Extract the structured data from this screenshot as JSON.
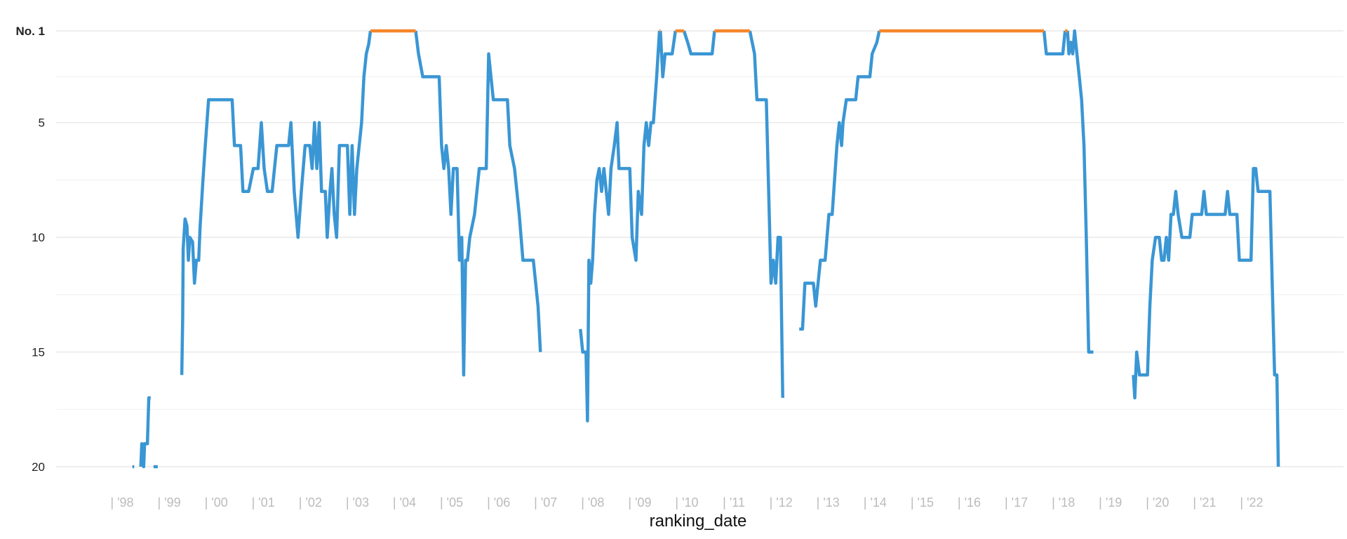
{
  "chart_data": {
    "type": "line",
    "xlabel": "ranking_date",
    "ylabel": "",
    "x_range": [
      1997.0,
      2023.7
    ],
    "y_range": [
      1,
      20
    ],
    "y_reversed": true,
    "y_ticks": [
      {
        "value": 1,
        "label": "No. 1",
        "bold": true
      },
      {
        "value": 5,
        "label": "5",
        "bold": false
      },
      {
        "value": 10,
        "label": "10",
        "bold": false
      },
      {
        "value": 15,
        "label": "15",
        "bold": false
      },
      {
        "value": 20,
        "label": "20",
        "bold": false
      }
    ],
    "y_minor_gridlines": [
      3,
      7.5,
      12.5,
      17.5
    ],
    "x_ticks": [
      {
        "value": 1998,
        "label": "| '98"
      },
      {
        "value": 1999,
        "label": "| '99"
      },
      {
        "value": 2000,
        "label": "| '00"
      },
      {
        "value": 2001,
        "label": "| '01"
      },
      {
        "value": 2002,
        "label": "| '02"
      },
      {
        "value": 2003,
        "label": "| '03"
      },
      {
        "value": 2004,
        "label": "| '04"
      },
      {
        "value": 2005,
        "label": "| '05"
      },
      {
        "value": 2006,
        "label": "| '06"
      },
      {
        "value": 2007,
        "label": "| '07"
      },
      {
        "value": 2008,
        "label": "| '08"
      },
      {
        "value": 2009,
        "label": "| '09"
      },
      {
        "value": 2010,
        "label": "| '10"
      },
      {
        "value": 2011,
        "label": "| '11"
      },
      {
        "value": 2012,
        "label": "| '12"
      },
      {
        "value": 2013,
        "label": "| '13"
      },
      {
        "value": 2014,
        "label": "| '14"
      },
      {
        "value": 2015,
        "label": "| '15"
      },
      {
        "value": 2016,
        "label": "| '16"
      },
      {
        "value": 2017,
        "label": "| '17"
      },
      {
        "value": 2018,
        "label": "| '18"
      },
      {
        "value": 2019,
        "label": "| '19"
      },
      {
        "value": 2020,
        "label": "| '20"
      },
      {
        "value": 2021,
        "label": "| '21"
      },
      {
        "value": 2022,
        "label": "| '22"
      }
    ],
    "grid": true,
    "colors": {
      "ranking_line": "#3a96d4",
      "number_one": "#f5862a",
      "grid": "#e4e4e4"
    },
    "series": [
      {
        "role": "ranking",
        "color": "#3a96d4",
        "segments": [
          [
            [
              1997.98,
              20
            ],
            [
              1998.02,
              20
            ]
          ],
          [
            [
              1998.16,
              20
            ],
            [
              1998.18,
              19
            ],
            [
              1998.22,
              20
            ],
            [
              1998.24,
              19
            ],
            [
              1998.3,
              19
            ],
            [
              1998.33,
              17
            ],
            [
              1998.37,
              17
            ]
          ],
          [
            [
              1998.43,
              20
            ],
            [
              1998.52,
              20
            ]
          ],
          [
            [
              1999.03,
              16
            ],
            [
              1999.05,
              13.5
            ],
            [
              1999.06,
              10.5
            ],
            [
              1999.1,
              9.2
            ],
            [
              1999.14,
              9.5
            ],
            [
              1999.17,
              11
            ],
            [
              1999.2,
              10
            ],
            [
              1999.26,
              10.2
            ],
            [
              1999.3,
              12
            ],
            [
              1999.34,
              11
            ],
            [
              1999.39,
              11
            ],
            [
              1999.42,
              9.5
            ],
            [
              1999.48,
              7.5
            ],
            [
              1999.53,
              6
            ],
            [
              1999.6,
              4
            ],
            [
              2000.1,
              4
            ],
            [
              2000.15,
              6
            ],
            [
              2000.28,
              6
            ],
            [
              2000.33,
              8
            ],
            [
              2000.45,
              8
            ],
            [
              2000.55,
              7
            ],
            [
              2000.65,
              7
            ],
            [
              2000.72,
              5
            ],
            [
              2000.78,
              7
            ],
            [
              2000.85,
              8
            ],
            [
              2000.95,
              8
            ],
            [
              2001.05,
              6
            ],
            [
              2001.3,
              6
            ],
            [
              2001.35,
              5
            ],
            [
              2001.42,
              8
            ],
            [
              2001.5,
              10
            ],
            [
              2001.57,
              8
            ],
            [
              2001.65,
              6
            ],
            [
              2001.75,
              6
            ],
            [
              2001.8,
              7
            ],
            [
              2001.85,
              5
            ],
            [
              2001.9,
              7
            ],
            [
              2001.95,
              5
            ],
            [
              2002.0,
              8
            ],
            [
              2002.08,
              8
            ],
            [
              2002.12,
              10
            ],
            [
              2002.18,
              8
            ],
            [
              2002.22,
              7
            ],
            [
              2002.27,
              9
            ],
            [
              2002.32,
              10
            ],
            [
              2002.38,
              6
            ],
            [
              2002.55,
              6
            ],
            [
              2002.6,
              9
            ],
            [
              2002.65,
              6
            ],
            [
              2002.7,
              9
            ],
            [
              2002.75,
              7
            ],
            [
              2002.85,
              5
            ],
            [
              2002.9,
              3
            ],
            [
              2002.95,
              2
            ],
            [
              2003.0,
              1.6
            ],
            [
              2003.04,
              1
            ]
          ],
          [
            [
              2004.0,
              1
            ],
            [
              2004.06,
              2
            ],
            [
              2004.15,
              3
            ],
            [
              2004.5,
              3
            ],
            [
              2004.55,
              6
            ],
            [
              2004.6,
              7
            ],
            [
              2004.65,
              6
            ],
            [
              2004.7,
              7
            ],
            [
              2004.75,
              9
            ],
            [
              2004.8,
              7
            ],
            [
              2004.88,
              7
            ],
            [
              2004.93,
              11
            ],
            [
              2004.98,
              10
            ],
            [
              2005.02,
              16
            ],
            [
              2005.06,
              11
            ],
            [
              2005.1,
              11
            ],
            [
              2005.15,
              10
            ],
            [
              2005.25,
              9
            ],
            [
              2005.35,
              7
            ],
            [
              2005.5,
              7
            ],
            [
              2005.55,
              2
            ],
            [
              2005.6,
              3
            ],
            [
              2005.65,
              4
            ],
            [
              2005.95,
              4
            ],
            [
              2006.0,
              6
            ],
            [
              2006.1,
              7
            ],
            [
              2006.2,
              9
            ],
            [
              2006.28,
              11
            ],
            [
              2006.5,
              11
            ],
            [
              2006.6,
              13
            ],
            [
              2006.65,
              15
            ]
          ],
          [
            [
              2007.5,
              14
            ],
            [
              2007.55,
              15
            ],
            [
              2007.62,
              15
            ],
            [
              2007.65,
              18
            ],
            [
              2007.68,
              11
            ],
            [
              2007.72,
              12
            ],
            [
              2007.76,
              11
            ],
            [
              2007.8,
              9
            ],
            [
              2007.85,
              7.5
            ],
            [
              2007.9,
              7
            ],
            [
              2007.95,
              8
            ],
            [
              2008.0,
              7
            ],
            [
              2008.05,
              8
            ],
            [
              2008.1,
              9
            ],
            [
              2008.15,
              7
            ],
            [
              2008.22,
              6
            ],
            [
              2008.28,
              5
            ],
            [
              2008.32,
              7
            ],
            [
              2008.55,
              7
            ],
            [
              2008.6,
              10
            ],
            [
              2008.68,
              11
            ],
            [
              2008.73,
              8
            ],
            [
              2008.8,
              9
            ],
            [
              2008.85,
              6
            ],
            [
              2008.9,
              5
            ],
            [
              2008.95,
              6
            ],
            [
              2009.0,
              5
            ],
            [
              2009.05,
              5
            ],
            [
              2009.12,
              3
            ],
            [
              2009.18,
              1
            ]
          ],
          [
            [
              2009.2,
              1
            ],
            [
              2009.25,
              3
            ],
            [
              2009.3,
              2
            ],
            [
              2009.38,
              2
            ],
            [
              2009.45,
              2
            ],
            [
              2009.52,
              1
            ]
          ],
          [
            [
              2009.7,
              1
            ],
            [
              2009.78,
              1.5
            ],
            [
              2009.85,
              2
            ],
            [
              2010.3,
              2
            ],
            [
              2010.35,
              1
            ]
          ],
          [
            [
              2011.1,
              1
            ],
            [
              2011.2,
              2
            ],
            [
              2011.25,
              4
            ],
            [
              2011.45,
              4
            ],
            [
              2011.55,
              12
            ],
            [
              2011.6,
              11
            ],
            [
              2011.65,
              12
            ],
            [
              2011.7,
              10
            ],
            [
              2011.75,
              10
            ],
            [
              2011.8,
              17
            ]
          ],
          [
            [
              2012.15,
              14
            ],
            [
              2012.22,
              14
            ],
            [
              2012.27,
              12
            ],
            [
              2012.45,
              12
            ],
            [
              2012.5,
              13
            ],
            [
              2012.6,
              11
            ],
            [
              2012.7,
              11
            ],
            [
              2012.78,
              9
            ],
            [
              2012.85,
              9
            ],
            [
              2012.95,
              6
            ],
            [
              2013.0,
              5
            ],
            [
              2013.05,
              6
            ],
            [
              2013.08,
              5
            ],
            [
              2013.15,
              4
            ],
            [
              2013.35,
              4
            ],
            [
              2013.4,
              3
            ],
            [
              2013.65,
              3
            ],
            [
              2013.7,
              2
            ],
            [
              2013.8,
              1.5
            ],
            [
              2013.85,
              1
            ]
          ],
          [
            [
              2017.35,
              1
            ],
            [
              2017.4,
              2
            ],
            [
              2017.75,
              2
            ],
            [
              2017.8,
              1
            ]
          ],
          [
            [
              2017.85,
              1
            ],
            [
              2017.88,
              2
            ],
            [
              2017.92,
              1.5
            ],
            [
              2017.96,
              2
            ],
            [
              2018.0,
              1
            ],
            [
              2018.05,
              2
            ],
            [
              2018.1,
              3
            ],
            [
              2018.15,
              4
            ],
            [
              2018.2,
              6
            ],
            [
              2018.25,
              10
            ],
            [
              2018.3,
              15
            ],
            [
              2018.4,
              15
            ]
          ],
          [
            [
              2019.25,
              16
            ],
            [
              2019.28,
              17
            ],
            [
              2019.32,
              15
            ],
            [
              2019.38,
              16
            ],
            [
              2019.55,
              16
            ],
            [
              2019.6,
              13
            ],
            [
              2019.65,
              11
            ],
            [
              2019.72,
              10
            ],
            [
              2019.8,
              10
            ],
            [
              2019.85,
              11
            ],
            [
              2019.9,
              11
            ],
            [
              2019.95,
              10
            ],
            [
              2020.0,
              11
            ],
            [
              2020.05,
              9
            ],
            [
              2020.1,
              9
            ],
            [
              2020.15,
              8
            ],
            [
              2020.2,
              9
            ],
            [
              2020.28,
              10
            ],
            [
              2020.45,
              10
            ],
            [
              2020.5,
              9
            ],
            [
              2020.7,
              9
            ],
            [
              2020.75,
              8
            ],
            [
              2020.8,
              9
            ],
            [
              2021.2,
              9
            ],
            [
              2021.25,
              8
            ],
            [
              2021.3,
              9
            ],
            [
              2021.45,
              9
            ],
            [
              2021.5,
              11
            ],
            [
              2021.75,
              11
            ],
            [
              2021.8,
              7
            ],
            [
              2021.85,
              7
            ],
            [
              2021.9,
              8
            ],
            [
              2022.15,
              8
            ],
            [
              2022.2,
              12
            ],
            [
              2022.25,
              16
            ],
            [
              2022.3,
              16
            ],
            [
              2022.33,
              20
            ]
          ]
        ]
      },
      {
        "role": "no1",
        "color": "#f5862a",
        "segments": [
          [
            [
              2003.04,
              1
            ],
            [
              2004.0,
              1
            ]
          ],
          [
            [
              2009.18,
              1
            ],
            [
              2009.2,
              1
            ]
          ],
          [
            [
              2009.52,
              1
            ],
            [
              2009.7,
              1
            ]
          ],
          [
            [
              2010.35,
              1
            ],
            [
              2011.1,
              1
            ]
          ],
          [
            [
              2013.85,
              1
            ],
            [
              2017.35,
              1
            ]
          ],
          [
            [
              2017.8,
              1
            ],
            [
              2017.85,
              1
            ]
          ]
        ]
      }
    ]
  }
}
